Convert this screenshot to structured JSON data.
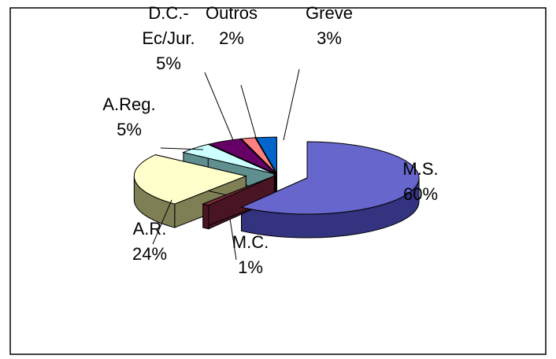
{
  "chart_data": {
    "type": "pie",
    "style": "3d-exploded",
    "title": "",
    "legend": "none",
    "slices": [
      {
        "name": "M.S.",
        "label_lines": [
          "M.S.",
          "60%"
        ],
        "value": 60,
        "color": "#6666cc",
        "side": "#33337f"
      },
      {
        "name": "M.C.",
        "label_lines": [
          "M.C.",
          "1%"
        ],
        "value": 1,
        "color": "#7f2a3c",
        "side": "#4a1522"
      },
      {
        "name": "A.R.",
        "label_lines": [
          "A.R.",
          "24%"
        ],
        "value": 24,
        "color": "#ffffcc",
        "side": "#7f7f55"
      },
      {
        "name": "A.Reg.",
        "label_lines": [
          "A.Reg.",
          "5%"
        ],
        "value": 5,
        "color": "#ccffff",
        "side": "#5f8f8f"
      },
      {
        "name": "D.C.-Ec/Jur.",
        "label_lines": [
          "D.C.-",
          "Ec/Jur.",
          "5%"
        ],
        "value": 5,
        "color": "#660066",
        "side": "#3a003a"
      },
      {
        "name": "Outros",
        "label_lines": [
          "Outros",
          "2%"
        ],
        "value": 2,
        "color": "#ff8080",
        "side": "#994040"
      },
      {
        "name": "D.C.-Greve",
        "label_lines": [
          "D.C.-",
          "Greve",
          "3%"
        ],
        "value": 3,
        "color": "#0066cc",
        "side": "#003a7a"
      }
    ]
  }
}
